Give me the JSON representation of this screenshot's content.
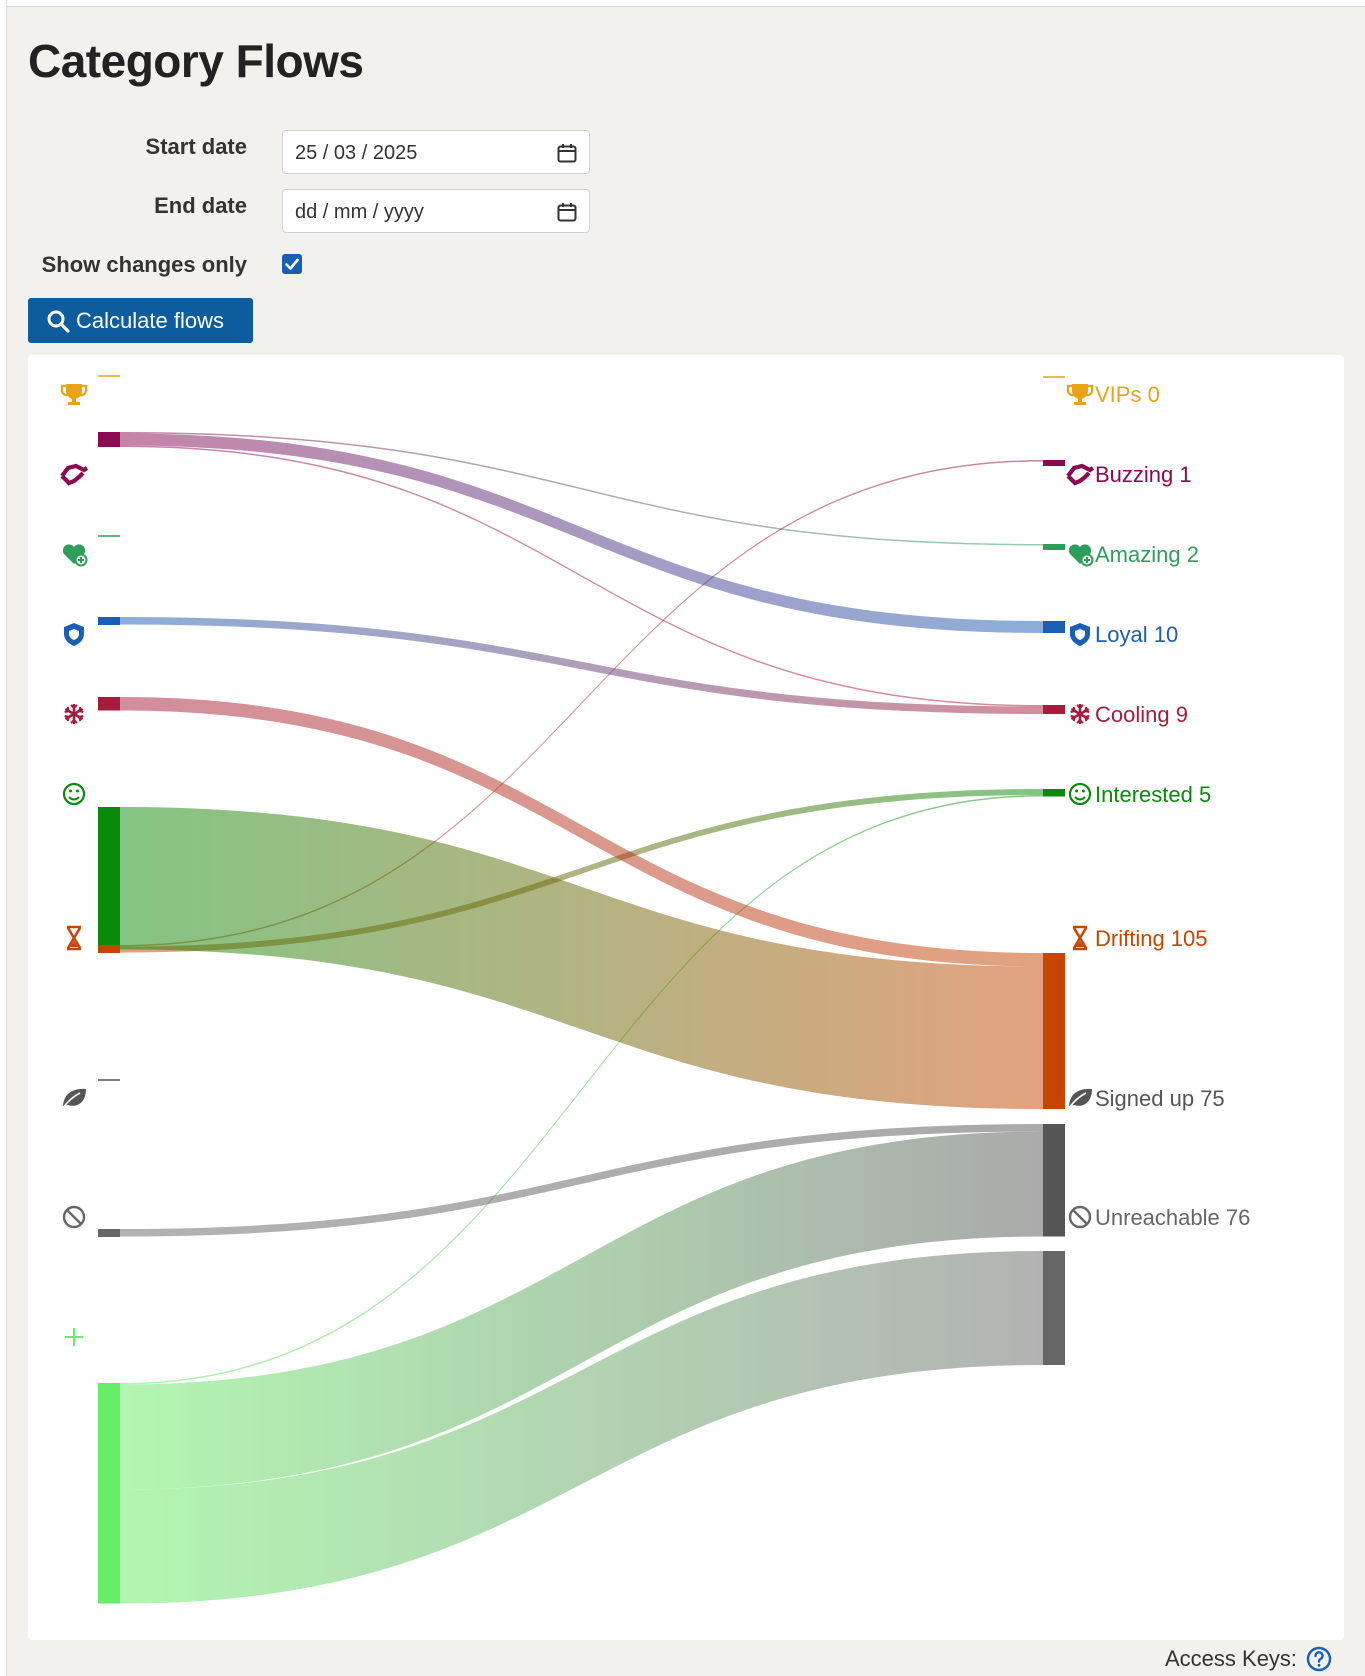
{
  "page": {
    "title": "Category Flows"
  },
  "form": {
    "start_label": "Start date",
    "start_value": "25 / 03 / 2025",
    "end_label": "End date",
    "end_value": "dd / mm / yyyy",
    "changes_label": "Show changes only",
    "changes_checked": true,
    "button_label": "Calculate flows"
  },
  "footer": {
    "access_keys": "Access Keys:"
  },
  "chart_data": {
    "type": "sankey",
    "nodes": [
      {
        "id": "vips",
        "label": "VIPs",
        "value": 0,
        "color": "#e8a317",
        "icon": "trophy-icon"
      },
      {
        "id": "buzzing",
        "label": "Buzzing",
        "value": 1,
        "color": "#8b0a50",
        "icon": "handshake-icon"
      },
      {
        "id": "amazing",
        "label": "Amazing",
        "value": 2,
        "color": "#2e9e5b",
        "icon": "heart-plus-icon"
      },
      {
        "id": "loyal",
        "label": "Loyal",
        "value": 10,
        "color": "#1a5fb4",
        "icon": "shield-icon"
      },
      {
        "id": "cooling",
        "label": "Cooling",
        "value": 9,
        "color": "#a51d3a",
        "icon": "snowflake-icon"
      },
      {
        "id": "interested",
        "label": "Interested",
        "value": 5,
        "color": "#0a8a0a",
        "icon": "smiley-icon"
      },
      {
        "id": "drifting",
        "label": "Drifting",
        "value": 105,
        "color": "#c64600",
        "icon": "hourglass-icon"
      },
      {
        "id": "signedup",
        "label": "Signed up",
        "value": 75,
        "color": "#555555",
        "icon": "leaf-icon"
      },
      {
        "id": "unreachable",
        "label": "Unreachable",
        "value": 76,
        "color": "#666666",
        "icon": "blocked-icon"
      },
      {
        "id": "new",
        "label": "",
        "color": "#66ee66",
        "icon": "plus-icon"
      }
    ],
    "links": [
      {
        "source": "buzzing",
        "target": "amazing",
        "value": 1
      },
      {
        "source": "buzzing",
        "target": "loyal",
        "value": 8
      },
      {
        "source": "buzzing",
        "target": "cooling",
        "value": 1
      },
      {
        "source": "loyal",
        "target": "cooling",
        "value": 5
      },
      {
        "source": "cooling",
        "target": "drifting",
        "value": 9
      },
      {
        "source": "interested",
        "target": "drifting",
        "value": 95
      },
      {
        "source": "drifting",
        "target": "buzzing",
        "value": 1
      },
      {
        "source": "drifting",
        "target": "interested",
        "value": 4
      },
      {
        "source": "unreachable",
        "target": "signedup",
        "value": 5
      },
      {
        "source": "new",
        "target": "interested",
        "value": 1
      },
      {
        "source": "new",
        "target": "signedup",
        "value": 70
      },
      {
        "source": "new",
        "target": "unreachable",
        "value": 76
      }
    ]
  }
}
